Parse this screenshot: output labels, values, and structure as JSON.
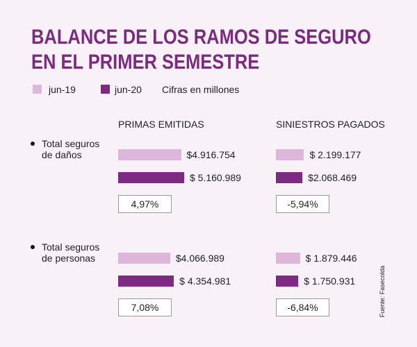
{
  "chart_data": {
    "type": "bar",
    "title": "BALANCE DE LOS RAMOS DE SEGURO EN EL PRIMER SEMESTRE",
    "subtitle": "Cifras en millones",
    "source": "Fuente: Fasecolda",
    "panels": [
      "PRIMAS EMITIDAS",
      "SINIESTROS PAGADOS"
    ],
    "categories": [
      "Total seguros de daños",
      "Total seguros de personas"
    ],
    "series": [
      {
        "name": "jun-19",
        "color": "#dcb7da",
        "values": [
          [
            4916754,
            2199177
          ],
          [
            4066989,
            1879446
          ]
        ],
        "value_labels": [
          [
            "$4.916.754",
            "$ 2.199.177"
          ],
          [
            "$4.066.989",
            "$ 1.879.446"
          ]
        ]
      },
      {
        "name": "jun-20",
        "color": "#7d2a83",
        "values": [
          [
            5160989,
            2068469
          ],
          [
            4354981,
            1750931
          ]
        ],
        "value_labels": [
          [
            "$ 5.160.989",
            "$2.068.469"
          ],
          [
            "$ 4.354.981",
            "$ 1.750.931"
          ]
        ]
      }
    ],
    "changes": {
      "values": [
        [
          4.97,
          -5.94
        ],
        [
          7.08,
          -6.84
        ]
      ],
      "value_labels": [
        [
          "4,97%",
          "-5,94%"
        ],
        [
          "7,08%",
          "-6,84%"
        ]
      ]
    }
  }
}
